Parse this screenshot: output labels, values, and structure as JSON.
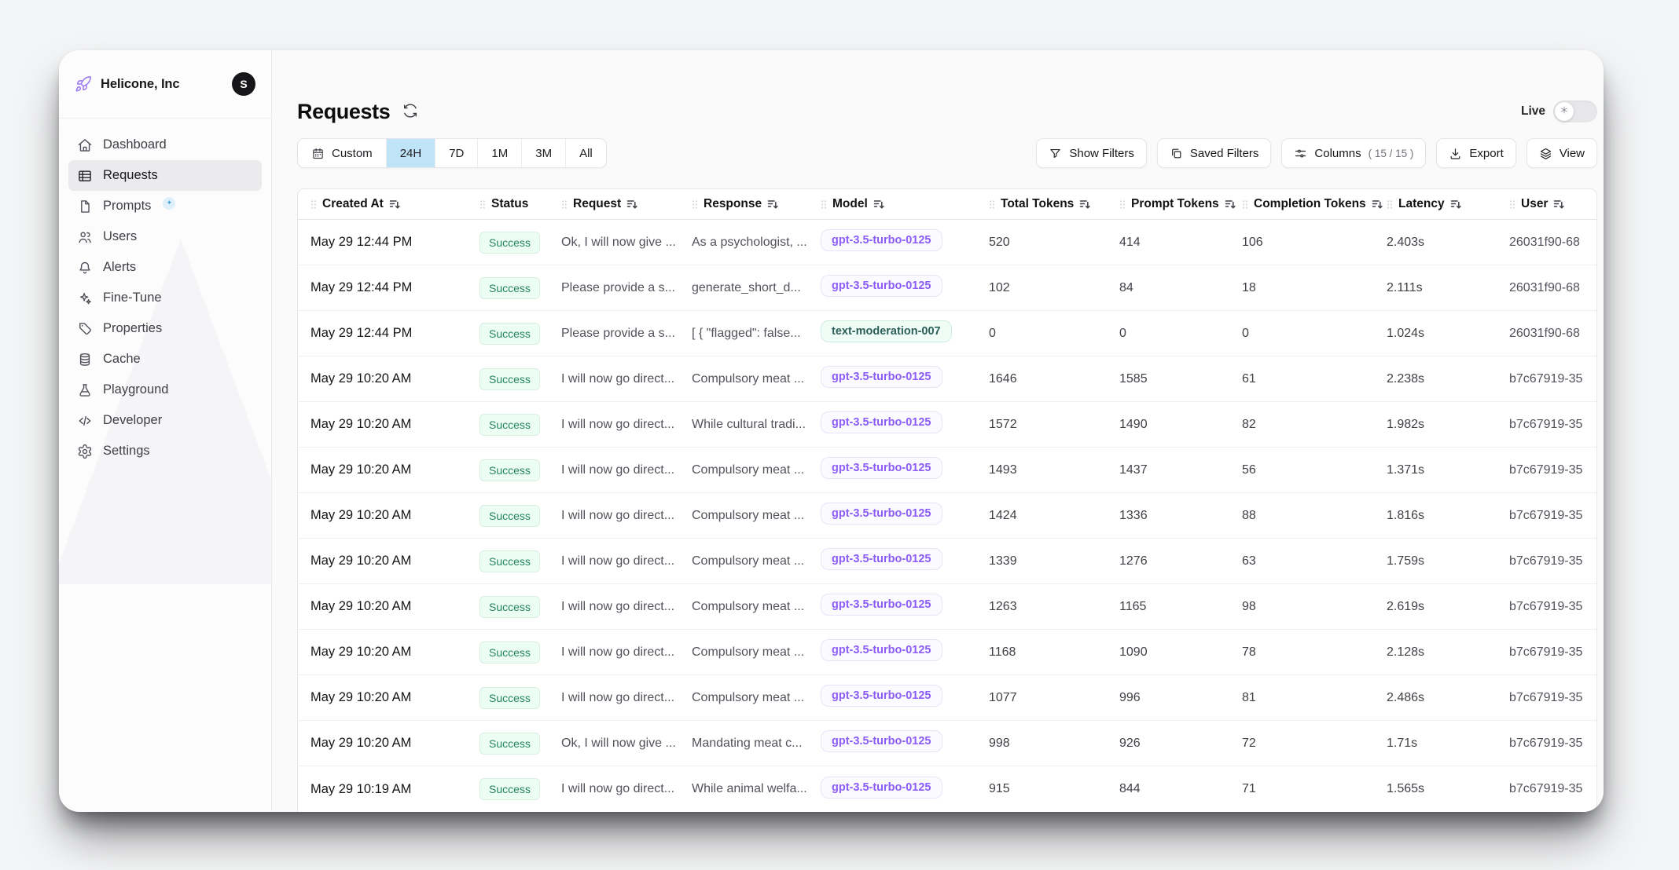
{
  "org": {
    "name": "Helicone, Inc",
    "avatar_initial": "S"
  },
  "sidebar": {
    "items": [
      {
        "label": "Dashboard",
        "icon": "home-icon"
      },
      {
        "label": "Requests",
        "icon": "table-icon",
        "active": true
      },
      {
        "label": "Prompts",
        "icon": "document-icon",
        "badge": "sparkle"
      },
      {
        "label": "Users",
        "icon": "users-icon"
      },
      {
        "label": "Alerts",
        "icon": "bell-icon"
      },
      {
        "label": "Fine-Tune",
        "icon": "sparkles-icon"
      },
      {
        "label": "Properties",
        "icon": "tag-icon"
      },
      {
        "label": "Cache",
        "icon": "database-icon"
      },
      {
        "label": "Playground",
        "icon": "beaker-icon"
      },
      {
        "label": "Developer",
        "icon": "code-icon"
      },
      {
        "label": "Settings",
        "icon": "gear-icon"
      }
    ]
  },
  "header": {
    "title": "Requests",
    "live_label": "Live",
    "refresh_icon": "refresh-icon"
  },
  "toolbar": {
    "time_ranges": [
      {
        "label": "Custom",
        "icon": "calendar-icon"
      },
      {
        "label": "24H",
        "selected": true
      },
      {
        "label": "7D"
      },
      {
        "label": "1M"
      },
      {
        "label": "3M"
      },
      {
        "label": "All"
      }
    ],
    "actions": [
      {
        "label": "Show Filters",
        "icon": "funnel-icon"
      },
      {
        "label": "Saved Filters",
        "icon": "copy-icon"
      },
      {
        "label": "Columns",
        "icon": "sliders-icon",
        "suffix": "( 15 / 15 )"
      },
      {
        "label": "Export",
        "icon": "download-icon"
      },
      {
        "label": "View",
        "icon": "layers-icon"
      }
    ]
  },
  "table": {
    "columns": [
      {
        "label": "Created At",
        "sortable": true
      },
      {
        "label": "Status",
        "sortable": false
      },
      {
        "label": "Request",
        "sortable": true
      },
      {
        "label": "Response",
        "sortable": true
      },
      {
        "label": "Model",
        "sortable": true
      },
      {
        "label": "Total Tokens",
        "sortable": true
      },
      {
        "label": "Prompt Tokens",
        "sortable": true
      },
      {
        "label": "Completion Tokens",
        "sortable": true
      },
      {
        "label": "Latency",
        "sortable": true
      },
      {
        "label": "User",
        "sortable": true
      }
    ],
    "rows": [
      {
        "created_at": "May 29 12:44 PM",
        "status": "Success",
        "request": "Ok, I will now give ...",
        "response": "As a psychologist, ...",
        "model": "gpt-3.5-turbo-0125",
        "model_style": "violet",
        "total_tokens": "520",
        "prompt_tokens": "414",
        "completion_tokens": "106",
        "latency": "2.403s",
        "user": "26031f90-68"
      },
      {
        "created_at": "May 29 12:44 PM",
        "status": "Success",
        "request": "Please provide a s...",
        "response": "generate_short_d...",
        "model": "gpt-3.5-turbo-0125",
        "model_style": "violet",
        "total_tokens": "102",
        "prompt_tokens": "84",
        "completion_tokens": "18",
        "latency": "2.111s",
        "user": "26031f90-68"
      },
      {
        "created_at": "May 29 12:44 PM",
        "status": "Success",
        "request": "Please provide a s...",
        "response": "[ { \"flagged\": false...",
        "model": "text-moderation-007",
        "model_style": "teal",
        "total_tokens": "0",
        "prompt_tokens": "0",
        "completion_tokens": "0",
        "latency": "1.024s",
        "user": "26031f90-68"
      },
      {
        "created_at": "May 29 10:20 AM",
        "status": "Success",
        "request": "I will now go direct...",
        "response": "Compulsory meat ...",
        "model": "gpt-3.5-turbo-0125",
        "model_style": "violet",
        "total_tokens": "1646",
        "prompt_tokens": "1585",
        "completion_tokens": "61",
        "latency": "2.238s",
        "user": "b7c67919-35"
      },
      {
        "created_at": "May 29 10:20 AM",
        "status": "Success",
        "request": "I will now go direct...",
        "response": "While cultural tradi...",
        "model": "gpt-3.5-turbo-0125",
        "model_style": "violet",
        "total_tokens": "1572",
        "prompt_tokens": "1490",
        "completion_tokens": "82",
        "latency": "1.982s",
        "user": "b7c67919-35"
      },
      {
        "created_at": "May 29 10:20 AM",
        "status": "Success",
        "request": "I will now go direct...",
        "response": "Compulsory meat ...",
        "model": "gpt-3.5-turbo-0125",
        "model_style": "violet",
        "total_tokens": "1493",
        "prompt_tokens": "1437",
        "completion_tokens": "56",
        "latency": "1.371s",
        "user": "b7c67919-35"
      },
      {
        "created_at": "May 29 10:20 AM",
        "status": "Success",
        "request": "I will now go direct...",
        "response": "Compulsory meat ...",
        "model": "gpt-3.5-turbo-0125",
        "model_style": "violet",
        "total_tokens": "1424",
        "prompt_tokens": "1336",
        "completion_tokens": "88",
        "latency": "1.816s",
        "user": "b7c67919-35"
      },
      {
        "created_at": "May 29 10:20 AM",
        "status": "Success",
        "request": "I will now go direct...",
        "response": "Compulsory meat ...",
        "model": "gpt-3.5-turbo-0125",
        "model_style": "violet",
        "total_tokens": "1339",
        "prompt_tokens": "1276",
        "completion_tokens": "63",
        "latency": "1.759s",
        "user": "b7c67919-35"
      },
      {
        "created_at": "May 29 10:20 AM",
        "status": "Success",
        "request": "I will now go direct...",
        "response": "Compulsory meat ...",
        "model": "gpt-3.5-turbo-0125",
        "model_style": "violet",
        "total_tokens": "1263",
        "prompt_tokens": "1165",
        "completion_tokens": "98",
        "latency": "2.619s",
        "user": "b7c67919-35"
      },
      {
        "created_at": "May 29 10:20 AM",
        "status": "Success",
        "request": "I will now go direct...",
        "response": "Compulsory meat ...",
        "model": "gpt-3.5-turbo-0125",
        "model_style": "violet",
        "total_tokens": "1168",
        "prompt_tokens": "1090",
        "completion_tokens": "78",
        "latency": "2.128s",
        "user": "b7c67919-35"
      },
      {
        "created_at": "May 29 10:20 AM",
        "status": "Success",
        "request": "I will now go direct...",
        "response": "Compulsory meat ...",
        "model": "gpt-3.5-turbo-0125",
        "model_style": "violet",
        "total_tokens": "1077",
        "prompt_tokens": "996",
        "completion_tokens": "81",
        "latency": "2.486s",
        "user": "b7c67919-35"
      },
      {
        "created_at": "May 29 10:20 AM",
        "status": "Success",
        "request": "Ok, I will now give ...",
        "response": "Mandating meat c...",
        "model": "gpt-3.5-turbo-0125",
        "model_style": "violet",
        "total_tokens": "998",
        "prompt_tokens": "926",
        "completion_tokens": "72",
        "latency": "1.71s",
        "user": "b7c67919-35"
      },
      {
        "created_at": "May 29 10:19 AM",
        "status": "Success",
        "request": "I will now go direct...",
        "response": "While animal welfa...",
        "model": "gpt-3.5-turbo-0125",
        "model_style": "violet",
        "total_tokens": "915",
        "prompt_tokens": "844",
        "completion_tokens": "71",
        "latency": "1.565s",
        "user": "b7c67919-35"
      }
    ]
  },
  "colors": {
    "logo_purple": "#9d7bf0",
    "range_selected_bg": "#bfe3f7",
    "status_success_bg": "#ecfdf3",
    "status_success_text": "#258562",
    "status_success_border": "#d7f0e2",
    "model_violet_text": "#8b5cf6",
    "model_violet_bg": "#fbfaff",
    "model_violet_border": "#e9e3f8",
    "model_teal_text": "#2b5f57",
    "model_teal_bg": "#f0fdf7",
    "model_teal_border": "#cdeee0"
  }
}
